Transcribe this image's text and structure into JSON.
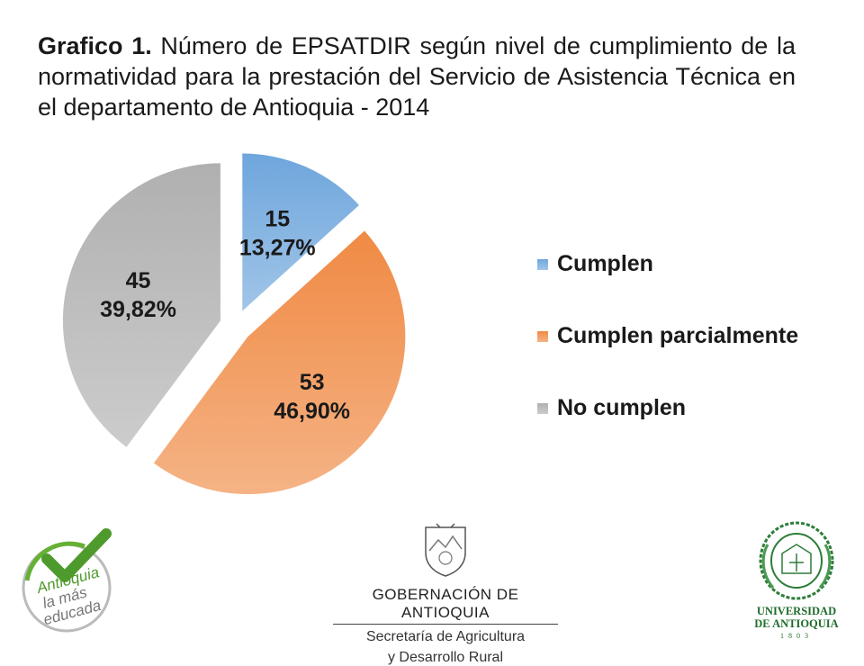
{
  "title": {
    "bold_part": "Grafico 1.",
    "rest": " Número de EPSATDIR según nivel de cumplimiento de la normatividad para la prestación del Servicio de Asistencia Técnica en el departamento de Antioquia - 2014"
  },
  "chart_data": {
    "type": "pie",
    "title": "Grafico 1. Número de EPSATDIR según nivel de cumplimiento de la normatividad para la prestación del Servicio de Asistencia Técnica en el departamento de Antioquia - 2014",
    "categories": [
      "Cumplen",
      "Cumplen parcialmente",
      "No cumplen"
    ],
    "values": [
      15,
      53,
      45
    ],
    "percent_labels": [
      "13,27%",
      "46,90%",
      "39,82%"
    ],
    "colors": [
      "#6ea6dc",
      "#f08a44",
      "#b0b0b0"
    ],
    "exploded": true,
    "legend_position": "right"
  },
  "logos": {
    "left_logo_text": [
      "Antioquia",
      "la más",
      "educada"
    ],
    "gobernacion": {
      "name": "GOBERNACIÓN DE ANTIOQUIA",
      "sub1": "Secretaría de Agricultura",
      "sub2": "y Desarrollo Rural"
    },
    "udea": {
      "line1": "UNIVERSIDAD",
      "line2": "DE ANTIOQUIA",
      "year": "1803"
    }
  }
}
